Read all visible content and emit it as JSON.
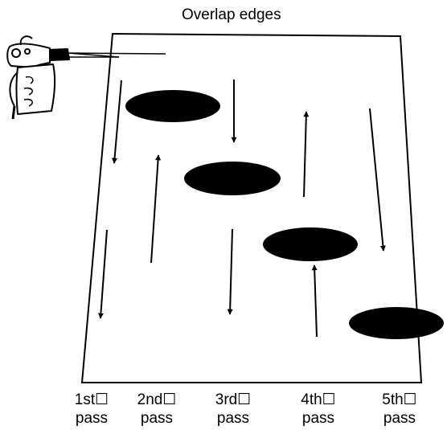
{
  "title": "Overlap edges",
  "passes": [
    {
      "order": "1st☐",
      "word": "pass"
    },
    {
      "order": "2nd☐",
      "word": "pass"
    },
    {
      "order": "3rd☐",
      "word": "pass"
    },
    {
      "order": "4th☐",
      "word": "pass"
    },
    {
      "order": "5th☐",
      "word": "pass"
    }
  ],
  "icons": {
    "spray_gun": "spray-gun-icon"
  },
  "colors": {
    "ink": "#000000",
    "background": "#ffffff"
  }
}
